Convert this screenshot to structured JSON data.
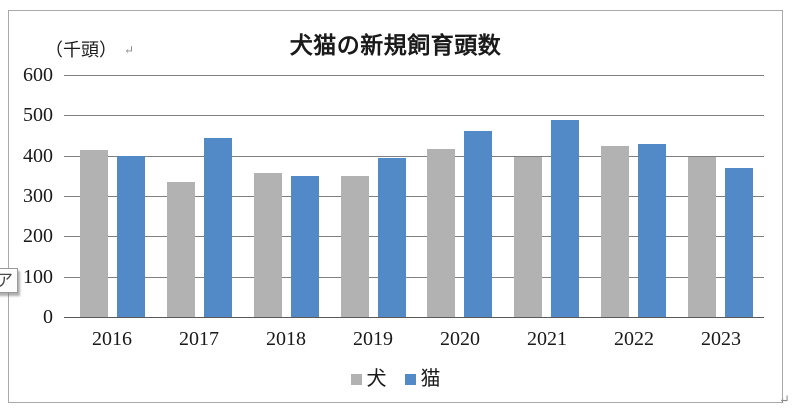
{
  "document": {
    "style_area_text": "ア",
    "return_mark": "↵"
  },
  "chart_data": {
    "type": "bar",
    "title": "犬猫の新規飼育頭数",
    "unit_label": "（千頭）",
    "xlabel": "",
    "ylabel": "（千頭）",
    "categories": [
      "2016",
      "2017",
      "2018",
      "2019",
      "2020",
      "2021",
      "2022",
      "2023"
    ],
    "series": [
      {
        "name": "犬",
        "color": "#b2b2b2",
        "values": [
          415,
          335,
          358,
          350,
          416,
          397,
          425,
          396
        ]
      },
      {
        "name": "猫",
        "color": "#5289c7",
        "values": [
          400,
          443,
          350,
          393,
          460,
          489,
          430,
          369
        ]
      }
    ],
    "ylim": [
      0,
      600
    ],
    "ytick_interval": 100,
    "yticks": [
      600,
      500,
      400,
      300,
      200,
      100,
      0
    ],
    "grid": true,
    "legend_position": "bottom",
    "colors": {
      "gridline": "#808080",
      "axis": "#595959",
      "frame_border": "#a9a9a9",
      "text": "#1a1a1a"
    }
  }
}
